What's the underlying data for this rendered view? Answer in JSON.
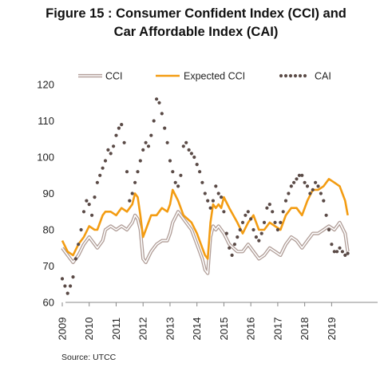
{
  "chart_data": {
    "type": "line",
    "title_line1": "Figure 15 : Consumer Confident Index (CCI) and",
    "title_line2": "Car Affordable Index (CAI)",
    "source": "Source: UTCC",
    "xlim": [
      2009,
      2019.7
    ],
    "ylim": [
      60,
      120
    ],
    "yticks": [
      60,
      70,
      80,
      90,
      100,
      110,
      120
    ],
    "xticks": [
      2009,
      2010,
      2011,
      2012,
      2013,
      2014,
      2015,
      2016,
      2017,
      2018,
      2019
    ],
    "grid": false,
    "legend_position": "top",
    "colors": {
      "cci": "#b09d97",
      "expected": "#f39c12",
      "cai": "#5a4a46",
      "axis": "#888888"
    },
    "series": [
      {
        "name": "CCI",
        "style": "double-line",
        "x": [
          2009.0,
          2009.2,
          2009.4,
          2009.6,
          2009.8,
          2010.0,
          2010.2,
          2010.3,
          2010.5,
          2010.6,
          2010.8,
          2011.0,
          2011.2,
          2011.4,
          2011.6,
          2011.7,
          2011.8,
          2011.9,
          2012.0,
          2012.1,
          2012.3,
          2012.5,
          2012.7,
          2012.9,
          2013.0,
          2013.1,
          2013.3,
          2013.5,
          2013.8,
          2014.0,
          2014.2,
          2014.3,
          2014.4,
          2014.5,
          2014.6,
          2014.7,
          2014.8,
          2014.9,
          2015.0,
          2015.2,
          2015.5,
          2015.7,
          2015.9,
          2016.1,
          2016.3,
          2016.5,
          2016.7,
          2016.9,
          2017.1,
          2017.3,
          2017.5,
          2017.7,
          2017.9,
          2018.1,
          2018.3,
          2018.5,
          2018.7,
          2018.9,
          2019.1,
          2019.3,
          2019.5,
          2019.6
        ],
        "y": [
          75,
          73,
          71,
          73,
          76,
          78,
          76,
          75,
          77,
          80,
          81,
          80,
          81,
          80,
          82,
          84,
          83,
          80,
          72,
          71,
          74,
          76,
          77,
          77,
          79,
          82,
          85,
          83,
          80,
          76,
          72,
          69,
          68,
          78,
          81,
          80,
          81,
          80,
          79,
          76,
          74,
          74,
          76,
          74,
          72,
          73,
          75,
          74,
          73,
          76,
          78,
          77,
          75,
          77,
          79,
          79,
          80,
          81,
          80,
          82,
          79,
          74
        ]
      },
      {
        "name": "Expected CCI",
        "style": "line",
        "x": [
          2009.0,
          2009.2,
          2009.4,
          2009.6,
          2009.8,
          2010.0,
          2010.2,
          2010.3,
          2010.5,
          2010.6,
          2010.8,
          2011.0,
          2011.2,
          2011.4,
          2011.6,
          2011.7,
          2011.8,
          2011.9,
          2012.0,
          2012.1,
          2012.3,
          2012.5,
          2012.7,
          2012.9,
          2013.0,
          2013.1,
          2013.3,
          2013.5,
          2013.8,
          2014.0,
          2014.2,
          2014.3,
          2014.4,
          2014.5,
          2014.6,
          2014.7,
          2014.8,
          2014.9,
          2015.0,
          2015.2,
          2015.5,
          2015.7,
          2015.9,
          2016.1,
          2016.3,
          2016.5,
          2016.7,
          2016.9,
          2017.1,
          2017.3,
          2017.5,
          2017.7,
          2017.9,
          2018.1,
          2018.3,
          2018.5,
          2018.7,
          2018.9,
          2019.1,
          2019.3,
          2019.5,
          2019.6
        ],
        "y": [
          77,
          74,
          73,
          76,
          78,
          81,
          80,
          80,
          84,
          85,
          85,
          84,
          86,
          85,
          87,
          90,
          89,
          84,
          78,
          80,
          84,
          84,
          86,
          85,
          87,
          91,
          88,
          84,
          82,
          79,
          75,
          73,
          72,
          82,
          87,
          86,
          87,
          86,
          89,
          86,
          82,
          79,
          82,
          84,
          80,
          80,
          82,
          81,
          80,
          84,
          86,
          86,
          84,
          88,
          91,
          91,
          92,
          94,
          93,
          92,
          88,
          84
        ]
      },
      {
        "name": "CAI",
        "style": "dotted",
        "x": [
          2009.0,
          2009.1,
          2009.2,
          2009.3,
          2009.4,
          2009.5,
          2009.6,
          2009.7,
          2009.8,
          2009.9,
          2010.0,
          2010.1,
          2010.2,
          2010.3,
          2010.4,
          2010.5,
          2010.6,
          2010.7,
          2010.8,
          2010.9,
          2011.0,
          2011.1,
          2011.2,
          2011.3,
          2011.4,
          2011.5,
          2011.6,
          2011.7,
          2011.8,
          2011.9,
          2012.0,
          2012.1,
          2012.2,
          2012.3,
          2012.4,
          2012.5,
          2012.6,
          2012.7,
          2012.8,
          2012.9,
          2013.0,
          2013.1,
          2013.2,
          2013.3,
          2013.4,
          2013.5,
          2013.6,
          2013.7,
          2013.8,
          2013.9,
          2014.0,
          2014.1,
          2014.2,
          2014.3,
          2014.4,
          2014.5,
          2014.6,
          2014.7,
          2014.8,
          2014.9,
          2015.0,
          2015.1,
          2015.2,
          2015.3,
          2015.4,
          2015.5,
          2015.6,
          2015.7,
          2015.8,
          2015.9,
          2016.0,
          2016.1,
          2016.2,
          2016.3,
          2016.4,
          2016.5,
          2016.6,
          2016.7,
          2016.8,
          2016.9,
          2017.0,
          2017.1,
          2017.2,
          2017.3,
          2017.4,
          2017.5,
          2017.6,
          2017.7,
          2017.8,
          2017.9,
          2018.0,
          2018.1,
          2018.2,
          2018.3,
          2018.4,
          2018.5,
          2018.6,
          2018.7,
          2018.8,
          2018.9,
          2019.0,
          2019.1,
          2019.2,
          2019.3,
          2019.4,
          2019.5,
          2019.6
        ],
        "y": [
          66.5,
          64.5,
          62.5,
          64.5,
          67,
          72,
          76,
          80,
          85,
          88,
          87,
          84,
          89,
          93,
          95,
          97,
          99,
          102,
          101,
          103,
          106,
          108,
          109,
          104,
          96,
          88,
          90,
          93,
          96,
          99,
          102,
          104,
          103,
          106,
          110,
          116,
          115,
          112,
          108,
          104,
          99,
          96,
          93,
          92,
          95,
          103,
          104,
          102,
          101,
          100,
          98,
          96,
          93,
          90,
          88,
          86,
          88,
          92,
          90,
          89,
          85,
          79,
          75,
          73,
          76,
          78,
          80,
          82,
          84,
          85,
          83,
          80,
          78,
          77,
          79,
          82,
          86,
          87,
          85,
          82,
          80,
          82,
          85,
          88,
          90,
          92,
          93,
          94,
          95,
          95,
          93,
          92,
          90,
          91,
          93,
          92,
          90,
          88,
          84,
          80,
          76,
          74,
          74,
          75,
          74,
          73,
          73.5
        ]
      }
    ]
  }
}
